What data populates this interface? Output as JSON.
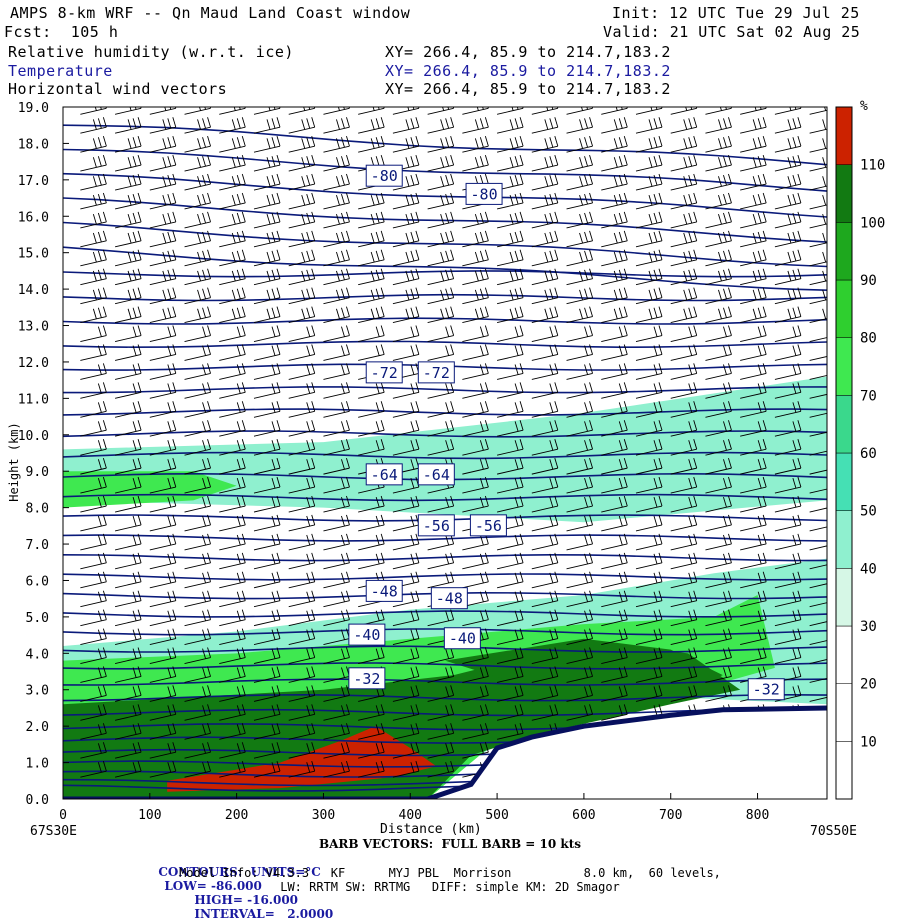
{
  "header": {
    "model": "AMPS 8-km WRF -- Qn Maud Land Coast window",
    "fcst": "Fcst:  105 h",
    "init": "Init: 12 UTC Tue 29 Jul 25",
    "valid": "Valid: 21 UTC Sat 02 Aug 25",
    "field1": "Relative humidity (w.r.t. ice)",
    "field1_xy": "XY= 266.4, 85.9 to 214.7,183.2",
    "field2": "Temperature",
    "field2_xy": "XY= 266.4, 85.9 to 214.7,183.2",
    "field3": "Horizontal wind vectors",
    "field3_xy": "XY= 266.4, 85.9 to 214.7,183.2"
  },
  "colors": {
    "temp_contour": "#0a1a7a",
    "terrain": "#07105e",
    "rh_bins": [
      "#ffffff",
      "#ffffff",
      "#ffffff",
      "#d6f7e6",
      "#8ff0cf",
      "#45e0b4",
      "#3ad88c",
      "#3fe850",
      "#2fcf2f",
      "#1ea81e",
      "#127a12",
      "#3d5a00",
      "#cc2200"
    ]
  },
  "chart_data": {
    "type": "heatmap",
    "title": "Relative humidity (w.r.t. ice) cross section",
    "xlabel": "Distance (km)",
    "ylabel": "Height (km)",
    "xlim": [
      0,
      880
    ],
    "ylim": [
      0,
      19
    ],
    "x_ticks": [
      "0",
      "100",
      "200",
      "300",
      "400",
      "500",
      "600",
      "700",
      "800"
    ],
    "y_ticks": [
      "0.0",
      "1.0",
      "2.0",
      "3.0",
      "4.0",
      "5.0",
      "6.0",
      "7.0",
      "8.0",
      "9.0",
      "10.0",
      "11.0",
      "12.0",
      "13.0",
      "14.0",
      "15.0",
      "16.0",
      "17.0",
      "18.0",
      "19.0"
    ],
    "x_left_label": "67S30E",
    "x_right_label": "70S50E",
    "colorbar": {
      "unit": "%",
      "ticks": [
        "10",
        "20",
        "30",
        "40",
        "50",
        "60",
        "70",
        "80",
        "90",
        "100",
        "110"
      ]
    },
    "rh_regions": [
      {
        "name": "rh-band-40-60-upper",
        "level": 40,
        "points": [
          [
            0,
            9.6
          ],
          [
            300,
            9.8
          ],
          [
            600,
            10.6
          ],
          [
            880,
            11.6
          ],
          [
            880,
            8.2
          ],
          [
            600,
            7.6
          ],
          [
            300,
            8.0
          ],
          [
            0,
            8.2
          ]
        ]
      },
      {
        "name": "rh-band-70-80",
        "level": 75,
        "points": [
          [
            0,
            9.0
          ],
          [
            150,
            9.0
          ],
          [
            200,
            8.6
          ],
          [
            150,
            8.2
          ],
          [
            0,
            8.0
          ]
        ]
      },
      {
        "name": "rh-lower-40",
        "level": 45,
        "points": [
          [
            0,
            4.2
          ],
          [
            200,
            4.6
          ],
          [
            400,
            5.2
          ],
          [
            600,
            5.6
          ],
          [
            750,
            6.2
          ],
          [
            880,
            6.6
          ],
          [
            880,
            2.6
          ],
          [
            700,
            2.8
          ],
          [
            500,
            1.5
          ],
          [
            400,
            0
          ],
          [
            0,
            0
          ]
        ]
      },
      {
        "name": "rh-lower-70",
        "level": 75,
        "points": [
          [
            0,
            3.8
          ],
          [
            200,
            4.0
          ],
          [
            400,
            4.4
          ],
          [
            600,
            4.8
          ],
          [
            750,
            5.0
          ],
          [
            800,
            5.6
          ],
          [
            820,
            3.6
          ],
          [
            700,
            2.8
          ],
          [
            500,
            1.6
          ],
          [
            420,
            0
          ],
          [
            0,
            0
          ]
        ]
      },
      {
        "name": "rh-lower-100",
        "level": 100,
        "points": [
          [
            0,
            2.6
          ],
          [
            150,
            2.8
          ],
          [
            300,
            3.0
          ],
          [
            450,
            3.4
          ],
          [
            550,
            4.0
          ],
          [
            650,
            4.2
          ],
          [
            720,
            4.0
          ],
          [
            780,
            3.0
          ],
          [
            700,
            2.6
          ],
          [
            550,
            1.8
          ],
          [
            470,
            1.2
          ],
          [
            420,
            0
          ],
          [
            0,
            0
          ]
        ]
      },
      {
        "name": "rh-lower-100-right",
        "level": 100,
        "points": [
          [
            440,
            3.8
          ],
          [
            600,
            4.4
          ],
          [
            700,
            4.1
          ],
          [
            760,
            3.4
          ],
          [
            700,
            2.8
          ],
          [
            600,
            2.6
          ]
        ]
      },
      {
        "name": "rh-lower-110",
        "level": 115,
        "points": [
          [
            120,
            0.5
          ],
          [
            250,
            1.0
          ],
          [
            320,
            1.6
          ],
          [
            360,
            2.0
          ],
          [
            400,
            1.4
          ],
          [
            430,
            0.9
          ],
          [
            380,
            0.6
          ],
          [
            250,
            0.3
          ],
          [
            120,
            0.2
          ]
        ]
      }
    ],
    "terrain": [
      [
        0,
        0
      ],
      [
        420,
        0
      ],
      [
        470,
        0.4
      ],
      [
        500,
        1.4
      ],
      [
        540,
        1.7
      ],
      [
        600,
        2.0
      ],
      [
        700,
        2.3
      ],
      [
        760,
        2.45
      ],
      [
        880,
        2.5
      ]
    ],
    "temperature_contours": {
      "units": "°C",
      "low": -86.0,
      "high": -16.0,
      "interval": 2.0,
      "labeled": [
        {
          "value": "-80",
          "x": 370,
          "y": 17.1
        },
        {
          "value": "-80",
          "x": 485,
          "y": 16.6
        },
        {
          "value": "-72",
          "x": 370,
          "y": 11.7
        },
        {
          "value": "-72",
          "x": 430,
          "y": 11.7
        },
        {
          "value": "-64",
          "x": 370,
          "y": 8.9
        },
        {
          "value": "-64",
          "x": 430,
          "y": 8.9
        },
        {
          "value": "-56",
          "x": 430,
          "y": 7.5
        },
        {
          "value": "-56",
          "x": 490,
          "y": 7.5
        },
        {
          "value": "-48",
          "x": 370,
          "y": 5.7
        },
        {
          "value": "-48",
          "x": 445,
          "y": 5.5
        },
        {
          "value": "-40",
          "x": 350,
          "y": 4.5
        },
        {
          "value": "-40",
          "x": 460,
          "y": 4.4
        },
        {
          "value": "-32",
          "x": 350,
          "y": 3.3
        },
        {
          "value": "-32",
          "x": 810,
          "y": 3.0
        }
      ]
    }
  },
  "footer": {
    "barb": "BARB VECTORS:  FULL BARB = 10 kts",
    "contours_label": "CONTOURS:  UNITS=°C",
    "low": "LOW= -86.000",
    "high": "HIGH= -16.000",
    "interval": "INTERVAL=   2.0000",
    "model_info": "Model Info: V4.3.3   KF      MYJ PBL  Morrison          8.0 km,  60 levels,",
    "physics": "LW: RRTM SW: RRTMG   DIFF: simple KM: 2D Smagor"
  }
}
